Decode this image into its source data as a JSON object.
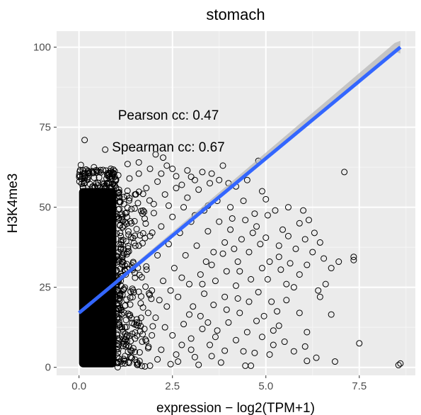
{
  "chart_data": {
    "type": "scatter",
    "title": "stomach",
    "xlabel": "expression − log2(TPM+1)",
    "ylabel": "H3K4me3",
    "xlim": [
      -0.6,
      9.0
    ],
    "ylim": [
      -2.5,
      105
    ],
    "x_ticks": [
      0.0,
      2.5,
      5.0,
      7.5
    ],
    "x_tick_labels": [
      "0.0",
      "2.5",
      "5.0",
      "7.5"
    ],
    "y_ticks": [
      0,
      25,
      50,
      75,
      100
    ],
    "y_tick_labels": [
      "0",
      "25",
      "50",
      "75",
      "100"
    ],
    "grid": true,
    "annotations": [
      {
        "text": "Pearson cc: 0.47",
        "x": 2.5,
        "y": 79
      },
      {
        "text": "Spearman cc: 0.67",
        "x": 2.5,
        "y": 69
      }
    ],
    "regression": {
      "x": [
        0.0,
        8.6
      ],
      "y": [
        17,
        100
      ],
      "color": "#3366FF",
      "ci_color": "#b3b3b3"
    },
    "dense_region": {
      "x_range": [
        0.0,
        1.0
      ],
      "y_range": [
        0,
        56
      ]
    },
    "points": [
      [
        0.15,
        71
      ],
      [
        0.7,
        68
      ],
      [
        2.05,
        66.5
      ],
      [
        2.25,
        65.5
      ],
      [
        1.6,
        64
      ],
      [
        1.3,
        63.5
      ],
      [
        0.05,
        63.2
      ],
      [
        0.4,
        62.5
      ],
      [
        2.5,
        62
      ],
      [
        2.9,
        61.5
      ],
      [
        3.3,
        61
      ],
      [
        3.55,
        60.5
      ],
      [
        4.8,
        64.5
      ],
      [
        3.85,
        63
      ],
      [
        2.2,
        60.5
      ],
      [
        2.6,
        59.7
      ],
      [
        3.1,
        58.5
      ],
      [
        3.5,
        57.5
      ],
      [
        4.0,
        57.5
      ],
      [
        4.2,
        56.5
      ],
      [
        4.5,
        58.5
      ],
      [
        4.9,
        55
      ],
      [
        5.0,
        52.5
      ],
      [
        5.05,
        47.5
      ],
      [
        5.25,
        49
      ],
      [
        5.6,
        50
      ],
      [
        5.45,
        43
      ],
      [
        5.35,
        38
      ],
      [
        5.1,
        33
      ],
      [
        5.05,
        27.5
      ],
      [
        5.4,
        30.5
      ],
      [
        5.9,
        45
      ],
      [
        6.0,
        49
      ],
      [
        6.15,
        46
      ],
      [
        6.3,
        42
      ],
      [
        6.05,
        40
      ],
      [
        6.45,
        39
      ],
      [
        6.25,
        36
      ],
      [
        6.55,
        34
      ],
      [
        6.1,
        32
      ],
      [
        5.8,
        37
      ],
      [
        5.6,
        41
      ],
      [
        5.9,
        29
      ],
      [
        5.55,
        26
      ],
      [
        5.75,
        25
      ],
      [
        6.4,
        24
      ],
      [
        6.6,
        26
      ],
      [
        6.75,
        31
      ],
      [
        6.95,
        33
      ],
      [
        7.1,
        61
      ],
      [
        7.35,
        34.5
      ],
      [
        7.35,
        33.5
      ],
      [
        6.45,
        22
      ],
      [
        6.75,
        16.5
      ],
      [
        5.9,
        17
      ],
      [
        5.35,
        13
      ],
      [
        5.5,
        8
      ],
      [
        5.1,
        4
      ],
      [
        4.6,
        0.5
      ],
      [
        4.45,
        0.5
      ],
      [
        5.75,
        5
      ],
      [
        6.05,
        6.5
      ],
      [
        6.1,
        2
      ],
      [
        6.35,
        3
      ],
      [
        6.85,
        1.8
      ],
      [
        7.5,
        7.5
      ],
      [
        8.55,
        0.7
      ],
      [
        8.6,
        1.2
      ],
      [
        6.1,
        11
      ],
      [
        4.4,
        5
      ],
      [
        3.9,
        5.2
      ],
      [
        4.2,
        8.5
      ],
      [
        3.7,
        11.5
      ],
      [
        4.0,
        14
      ],
      [
        4.3,
        17
      ],
      [
        4.55,
        20.5
      ],
      [
        4.8,
        23.5
      ],
      [
        4.2,
        25.5
      ],
      [
        3.9,
        22
      ],
      [
        3.6,
        19.5
      ],
      [
        3.25,
        16
      ],
      [
        3.3,
        12
      ],
      [
        3.0,
        9
      ],
      [
        2.75,
        7
      ],
      [
        3.5,
        7
      ],
      [
        3.55,
        3.5
      ],
      [
        3.1,
        3.2
      ],
      [
        2.6,
        4
      ],
      [
        2.2,
        5.5
      ],
      [
        2.5,
        10
      ],
      [
        2.8,
        13.5
      ],
      [
        3.05,
        19
      ],
      [
        3.35,
        23
      ],
      [
        3.65,
        27
      ],
      [
        3.95,
        30
      ],
      [
        4.25,
        33
      ],
      [
        4.55,
        36
      ],
      [
        4.85,
        38.5
      ],
      [
        4.65,
        42
      ],
      [
        4.35,
        40
      ],
      [
        4.05,
        43
      ],
      [
        3.75,
        45.5
      ],
      [
        3.45,
        42.5
      ],
      [
        3.15,
        38
      ],
      [
        2.85,
        35
      ],
      [
        2.55,
        31
      ],
      [
        2.25,
        27
      ],
      [
        1.95,
        24
      ],
      [
        1.65,
        20
      ],
      [
        1.35,
        16
      ],
      [
        1.05,
        13
      ],
      [
        1.5,
        9
      ],
      [
        1.85,
        6
      ],
      [
        2.1,
        2.5
      ],
      [
        1.4,
        3
      ],
      [
        1.75,
        12
      ],
      [
        2.05,
        15.5
      ],
      [
        2.35,
        19
      ],
      [
        2.65,
        22
      ],
      [
        2.95,
        26
      ],
      [
        3.25,
        29
      ],
      [
        3.55,
        32
      ],
      [
        3.85,
        35.5
      ],
      [
        4.15,
        37
      ],
      [
        4.45,
        46
      ],
      [
        4.7,
        48
      ],
      [
        4.05,
        50
      ],
      [
        3.7,
        52
      ],
      [
        3.35,
        49
      ],
      [
        3.0,
        45.5
      ],
      [
        2.7,
        42
      ],
      [
        2.4,
        38.5
      ],
      [
        2.1,
        35
      ],
      [
        1.8,
        31.5
      ],
      [
        1.5,
        28
      ],
      [
        1.2,
        24.5
      ],
      [
        1.1,
        42
      ],
      [
        1.4,
        45
      ],
      [
        1.7,
        48
      ],
      [
        2.0,
        51
      ],
      [
        2.3,
        54
      ],
      [
        2.6,
        56
      ],
      [
        2.9,
        53
      ],
      [
        3.2,
        55.5
      ],
      [
        3.6,
        36
      ],
      [
        3.9,
        39
      ],
      [
        4.3,
        30
      ],
      [
        4.6,
        27.5
      ],
      [
        4.9,
        31
      ],
      [
        5.15,
        20.5
      ],
      [
        5.3,
        17.5
      ],
      [
        5.55,
        21
      ],
      [
        4.75,
        14.5
      ],
      [
        4.5,
        11
      ],
      [
        4.9,
        9.5
      ],
      [
        5.2,
        7
      ],
      [
        3.8,
        1.5
      ],
      [
        3.2,
        0.8
      ],
      [
        2.45,
        1
      ],
      [
        1.9,
        0.5
      ],
      [
        1.25,
        6.5
      ],
      [
        1.6,
        38
      ],
      [
        1.9,
        41
      ],
      [
        2.2,
        44
      ],
      [
        2.5,
        47
      ],
      [
        2.8,
        50
      ],
      [
        3.1,
        47.5
      ],
      [
        3.4,
        33
      ],
      [
        2.75,
        28
      ],
      [
        2.45,
        24
      ],
      [
        2.15,
        21
      ],
      [
        1.85,
        17
      ],
      [
        1.55,
        14
      ],
      [
        1.3,
        10
      ],
      [
        1.15,
        33
      ],
      [
        1.3,
        36
      ],
      [
        1.2,
        51
      ],
      [
        1.5,
        54
      ],
      [
        1.8,
        56
      ],
      [
        2.1,
        58
      ],
      [
        2.4,
        50.5
      ],
      [
        1.35,
        59
      ],
      [
        1.05,
        60
      ],
      [
        0.85,
        62
      ],
      [
        1.6,
        60.5
      ],
      [
        1.9,
        62
      ],
      [
        2.35,
        63
      ],
      [
        2.75,
        57
      ],
      [
        3.0,
        59.5
      ],
      [
        3.75,
        58.5
      ],
      [
        3.45,
        50.5
      ],
      [
        4.1,
        46.5
      ],
      [
        4.4,
        52
      ],
      [
        4.75,
        44
      ],
      [
        5.0,
        40.5
      ],
      [
        3.3,
        26
      ],
      [
        2.95,
        16.5
      ],
      [
        3.45,
        14
      ],
      [
        2.3,
        12.5
      ],
      [
        1.95,
        10
      ],
      [
        2.65,
        1.8
      ],
      [
        3.0,
        5.5
      ],
      [
        3.95,
        18
      ],
      [
        4.25,
        21.5
      ],
      [
        5.35,
        34.5
      ],
      [
        5.65,
        32.5
      ],
      [
        4.95,
        16
      ],
      [
        4.7,
        4.5
      ],
      [
        5.2,
        11.5
      ],
      [
        3.65,
        9.5
      ],
      [
        1.15,
        1.2
      ],
      [
        1.55,
        1.6
      ],
      [
        1.0,
        22
      ],
      [
        1.25,
        29
      ],
      [
        1.45,
        32.5
      ],
      [
        1.0,
        47
      ]
    ]
  }
}
